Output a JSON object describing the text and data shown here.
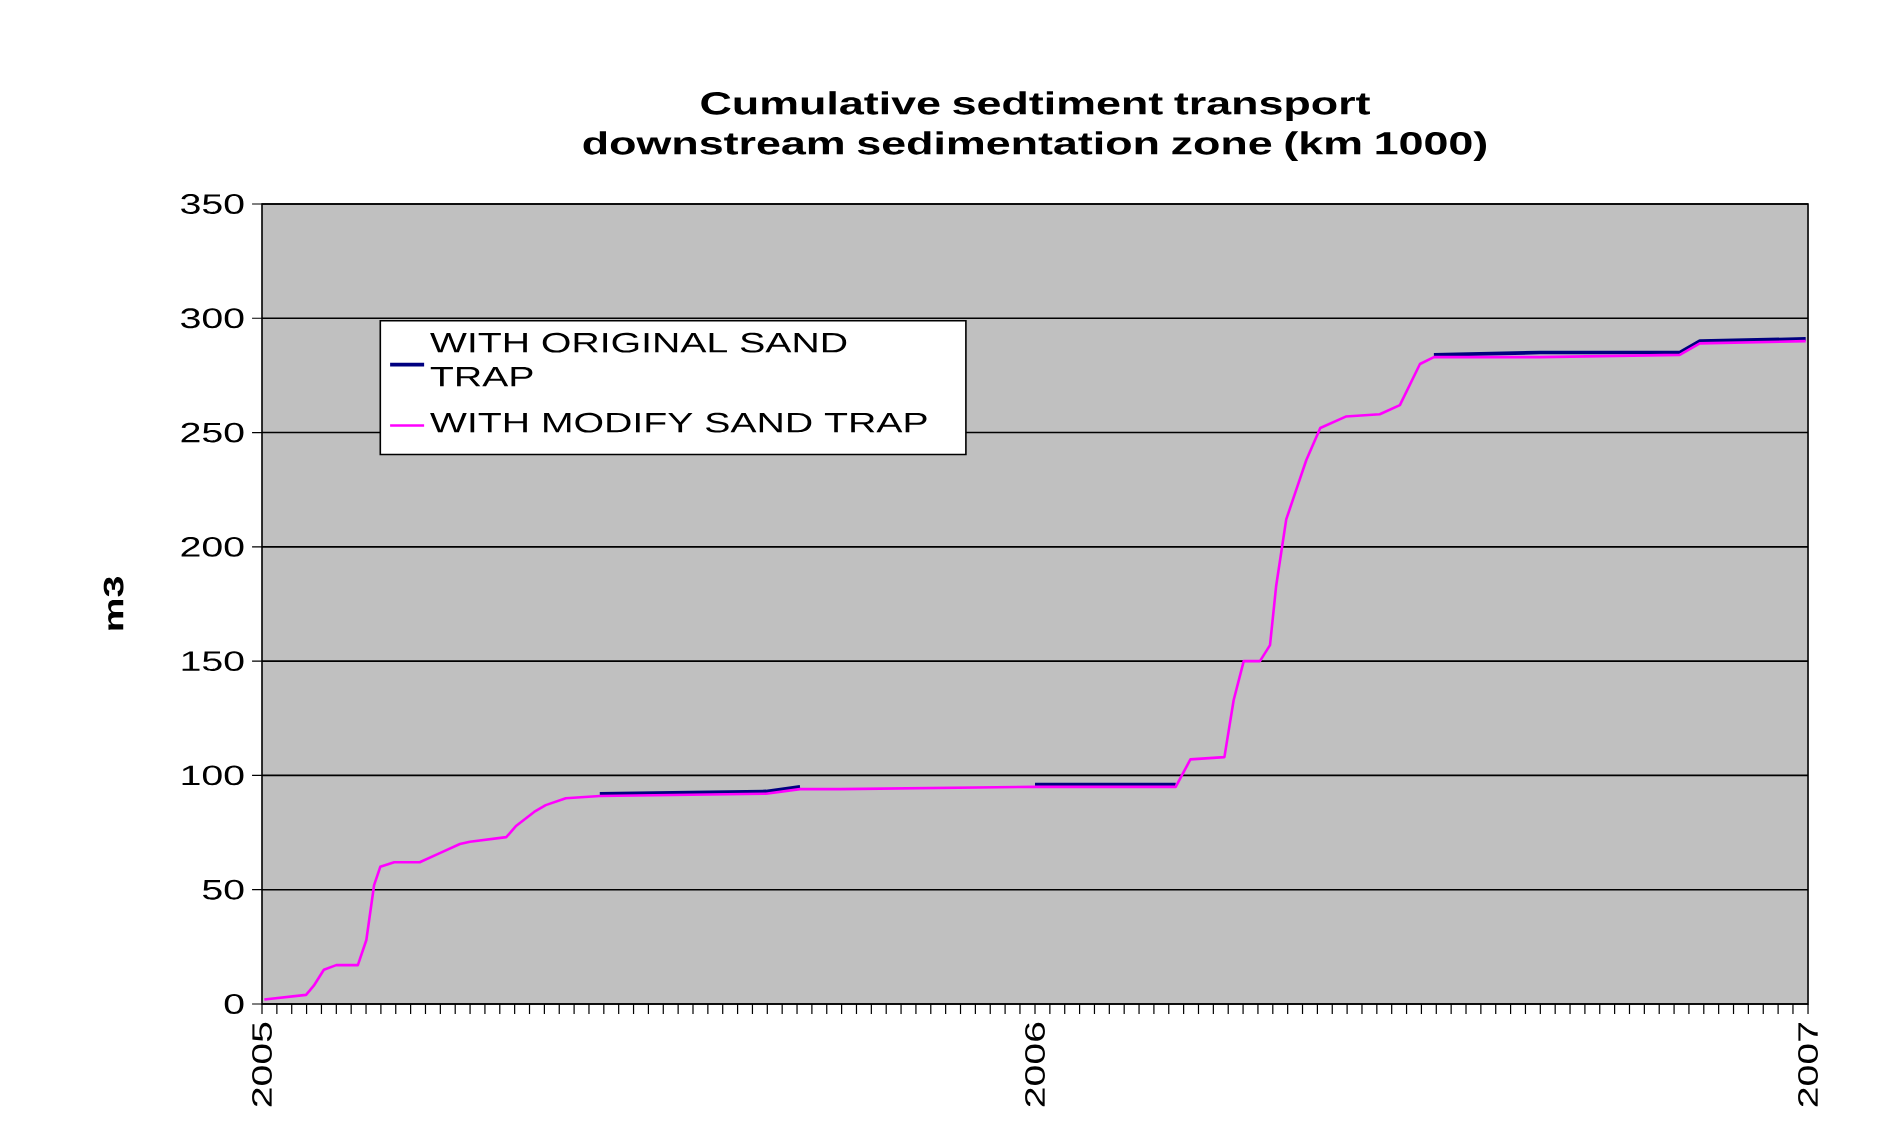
{
  "chart_data": {
    "type": "line",
    "title": "Cumulative sedtiment transport downstream sedimentation zone (km 1000)",
    "ylabel": "m3",
    "xlim": [
      2005,
      2007
    ],
    "xticks": [
      2005,
      2006,
      2007
    ],
    "ylim": [
      0,
      350
    ],
    "yticks": [
      0,
      50,
      100,
      150,
      200,
      250,
      300,
      350
    ],
    "grid": "y",
    "legend": "top left",
    "marker": "none",
    "line_style": "solid",
    "x": [
      2005.003,
      2005.057,
      2005.067,
      2005.08,
      2005.096,
      2005.124,
      2005.135,
      2005.145,
      2005.153,
      2005.171,
      2005.204,
      2005.23,
      2005.256,
      2005.269,
      2005.316,
      2005.329,
      2005.352,
      2005.367,
      2005.393,
      2005.437,
      2005.652,
      2005.696,
      2005.748,
      2006.0,
      2006.118,
      2006.182,
      2006.201,
      2006.245,
      2006.257,
      2006.27,
      2006.291,
      2006.304,
      2006.312,
      2006.325,
      2006.338,
      2006.351,
      2006.369,
      2006.402,
      2006.446,
      2006.472,
      2006.498,
      2006.516,
      2006.653,
      2006.834,
      2006.86,
      2006.997
    ],
    "series": [
      {
        "name": "WITH ORIGINAL SAND TRAP",
        "color": "#000080",
        "values": [
          null,
          null,
          null,
          null,
          null,
          null,
          null,
          null,
          null,
          null,
          null,
          null,
          null,
          null,
          null,
          null,
          null,
          null,
          null,
          92,
          93,
          95,
          null,
          96,
          96,
          96,
          null,
          null,
          null,
          null,
          null,
          null,
          null,
          null,
          null,
          null,
          null,
          null,
          null,
          null,
          null,
          284,
          285,
          285,
          290,
          291
        ]
      },
      {
        "name": "WITH MODIFY SAND TRAP",
        "color": "#ff00ff",
        "values": [
          2,
          4,
          8,
          15,
          17,
          17,
          28,
          52,
          60,
          62,
          62,
          66,
          70,
          71,
          73,
          78,
          84,
          87,
          90,
          91,
          92,
          94,
          94,
          95,
          95,
          95,
          107,
          108,
          133,
          150,
          150,
          157,
          183,
          212,
          225,
          238,
          252,
          257,
          258,
          262,
          280,
          283,
          283,
          284,
          289,
          290
        ]
      }
    ]
  }
}
